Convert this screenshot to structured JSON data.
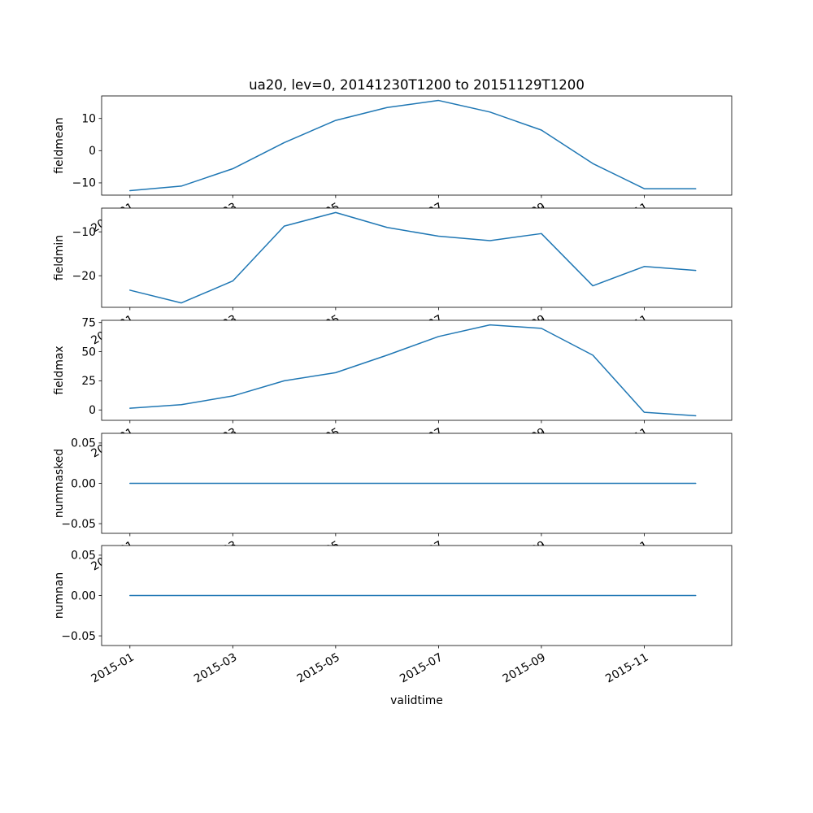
{
  "figure": {
    "background": "#ffffff"
  },
  "chart_data": {
    "type": "line",
    "title": "ua20, lev=0, 20141230T1200 to 20151129T1200",
    "xlabel": "validtime",
    "line_color": "#1f77b4",
    "frame_color": "#000000",
    "grid": false,
    "legend": "none",
    "x": [
      0,
      1,
      2,
      3,
      4,
      5,
      6,
      7,
      8,
      9,
      10,
      11
    ],
    "xlim": [
      -0.55,
      11.7
    ],
    "xtick_rotation": 30,
    "xticks": [
      {
        "pos": 0,
        "label": "2015-01"
      },
      {
        "pos": 2,
        "label": "2015-03"
      },
      {
        "pos": 4,
        "label": "2015-05"
      },
      {
        "pos": 6,
        "label": "2015-07"
      },
      {
        "pos": 8,
        "label": "2015-09"
      },
      {
        "pos": 10,
        "label": "2015-11"
      }
    ],
    "subplots": [
      {
        "ylabel": "fieldmean",
        "values": [
          -12.4,
          -11.0,
          -5.6,
          2.5,
          9.4,
          13.4,
          15.6,
          12.0,
          6.4,
          -4.0,
          -11.8,
          -11.8
        ],
        "ylim": [
          -13.8,
          17.0
        ],
        "yticks": [
          {
            "value": 10,
            "label": "10"
          },
          {
            "value": 0,
            "label": "0"
          },
          {
            "value": -10,
            "label": "−10"
          }
        ]
      },
      {
        "ylabel": "fieldmin",
        "values": [
          -23.3,
          -26.2,
          -21.2,
          -8.7,
          -5.6,
          -9.0,
          -11.0,
          -12.0,
          -10.4,
          -22.3,
          -17.9,
          -18.8
        ],
        "ylim": [
          -27.2,
          -4.6
        ],
        "yticks": [
          {
            "value": -10,
            "label": "−10"
          },
          {
            "value": -20,
            "label": "−20"
          }
        ]
      },
      {
        "ylabel": "fieldmax",
        "values": [
          1.5,
          4.5,
          12.0,
          25.0,
          32.0,
          47.0,
          63.0,
          73.0,
          70.0,
          47.0,
          -2.0,
          -5.0
        ],
        "ylim": [
          -8.9,
          76.9
        ],
        "yticks": [
          {
            "value": 75,
            "label": "75"
          },
          {
            "value": 50,
            "label": "50"
          },
          {
            "value": 25,
            "label": "25"
          },
          {
            "value": 0,
            "label": "0"
          }
        ]
      },
      {
        "ylabel": "nummasked",
        "values": [
          0,
          0,
          0,
          0,
          0,
          0,
          0,
          0,
          0,
          0,
          0,
          0
        ],
        "ylim": [
          -0.062,
          0.062
        ],
        "yticks": [
          {
            "value": 0.05,
            "label": "0.05"
          },
          {
            "value": 0,
            "label": "0.00"
          },
          {
            "value": -0.05,
            "label": "−0.05"
          }
        ]
      },
      {
        "ylabel": "numnan",
        "values": [
          0,
          0,
          0,
          0,
          0,
          0,
          0,
          0,
          0,
          0,
          0,
          0
        ],
        "ylim": [
          -0.062,
          0.062
        ],
        "yticks": [
          {
            "value": 0.05,
            "label": "0.05"
          },
          {
            "value": 0,
            "label": "0.00"
          },
          {
            "value": -0.05,
            "label": "−0.05"
          }
        ]
      }
    ]
  }
}
